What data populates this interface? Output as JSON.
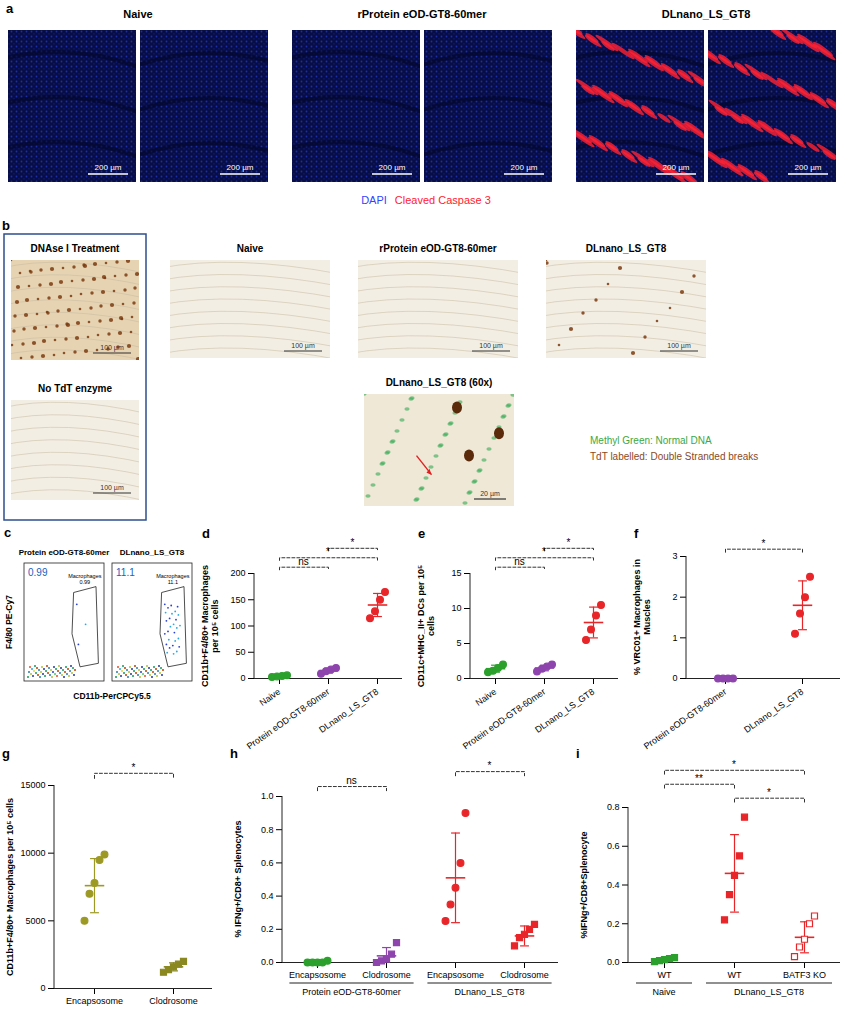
{
  "panel_a": {
    "panel_label": "a",
    "groups": [
      {
        "title": "Naive",
        "colors": [
          "#2f45ff"
        ]
      },
      {
        "title": "rProtein eOD-GT8-60mer",
        "colors": [
          "#2f45ff"
        ]
      },
      {
        "title": "DLnano_LS_GT8",
        "colors": [
          "#2f45ff",
          "#ff2233"
        ]
      }
    ],
    "scale_bar": "200 µm",
    "legend": [
      {
        "text": "DAPI",
        "color": "#2f45ff"
      },
      {
        "text": "Cleaved Caspase 3",
        "color": "#ff2233"
      }
    ]
  },
  "panel_b": {
    "panel_label": "b",
    "controls": [
      {
        "title": "DNAse I Treatment",
        "colors": [
          "#e6d3b2",
          "#7a3b10"
        ]
      },
      {
        "title": "No TdT enzyme",
        "colors": [
          "#f3eee4"
        ]
      }
    ],
    "images": [
      {
        "title": "Naive",
        "colors": [
          "#f3eee4"
        ]
      },
      {
        "title": "rProtein eOD-GT8-60mer",
        "colors": [
          "#f3eee4"
        ]
      },
      {
        "title": "DLnano_LS_GT8",
        "colors": [
          "#f3eee4",
          "#7a3b10"
        ]
      }
    ],
    "scale_bar": "100 µm",
    "inset": {
      "title": "DLnano_LS_GT8 (60x)",
      "scale_bar": "20 µm",
      "colors": [
        "#efe8d6",
        "#3fae5a",
        "#5a2a0a"
      ]
    },
    "legend": [
      {
        "text": "Methyl Green: Normal DNA",
        "color": "#3aa845"
      },
      {
        "text": "TdT labelled: Double Stranded breaks",
        "color": "#8b4a1c"
      }
    ]
  },
  "panel_c": {
    "panel_label": "c",
    "xlabel": "CD11b-PerCPCy5.5",
    "ylabel": "F4/80 PE-Cy7",
    "plots": [
      {
        "title": "Protein eOD-GT8-60mer",
        "gate": "Macrophages",
        "gate_value": 0.99
      },
      {
        "title": "DLnano_LS_GT8",
        "gate": "Macrophages",
        "gate_value": 11.1
      }
    ]
  },
  "chart_data": [
    {
      "panel_label": "d",
      "type": "scatter",
      "ylabel": "CD11b+F4/80+ Macrophages per 10⁵ cells",
      "ylim": [
        0,
        200
      ],
      "yticks": [
        0,
        50,
        100,
        150,
        200
      ],
      "series": [
        {
          "name": "Naive",
          "color": "#2ca02c",
          "marker": "circle",
          "values": [
            3,
            4,
            5,
            6
          ],
          "mean": 4.5,
          "sd": 1.3
        },
        {
          "name": "Protein eOD-GT8-60mer",
          "color": "#8e44ad",
          "marker": "circle",
          "values": [
            9,
            14,
            17,
            20
          ],
          "mean": 15,
          "sd": 4.7
        },
        {
          "name": "DLnano_LS_GT8",
          "color": "#e8262a",
          "marker": "circle",
          "values": [
            115,
            128,
            150,
            165
          ],
          "mean": 140,
          "sd": 22
        }
      ],
      "significance": [
        {
          "between": [
            0,
            1
          ],
          "label": "ns"
        },
        {
          "between": [
            0,
            2
          ],
          "label": "*"
        },
        {
          "between": [
            1,
            2
          ],
          "label": "*"
        }
      ]
    },
    {
      "panel_label": "e",
      "type": "scatter",
      "ylabel": "CD11c+MHC_II+ DCs per 10⁵ cells",
      "ylim": [
        0,
        15
      ],
      "yticks": [
        0,
        5,
        10,
        15
      ],
      "series": [
        {
          "name": "Naive",
          "color": "#2ca02c",
          "marker": "circle",
          "values": [
            0.9,
            1.1,
            1.5,
            2.0
          ],
          "mean": 1.4,
          "sd": 0.5
        },
        {
          "name": "Protein eOD-GT8-60mer",
          "color": "#8e44ad",
          "marker": "circle",
          "values": [
            1.0,
            1.4,
            1.7,
            2.0
          ],
          "mean": 1.5,
          "sd": 0.4
        },
        {
          "name": "DLnano_LS_GT8",
          "color": "#e8262a",
          "marker": "circle",
          "values": [
            5.5,
            7.0,
            9.0,
            10.5
          ],
          "mean": 8,
          "sd": 2.2
        }
      ],
      "significance": [
        {
          "between": [
            0,
            1
          ],
          "label": "ns"
        },
        {
          "between": [
            0,
            2
          ],
          "label": "*"
        },
        {
          "between": [
            1,
            2
          ],
          "label": "*"
        }
      ]
    },
    {
      "panel_label": "f",
      "type": "scatter",
      "ylabel": "% VRC01+ Macrophages in Muscles",
      "ylim": [
        0,
        3
      ],
      "yticks": [
        0,
        1,
        2,
        3
      ],
      "series": [
        {
          "name": "Protein eOD-GT8-60mer",
          "color": "#8e44ad",
          "marker": "circle",
          "values": [
            0,
            0,
            0,
            0
          ],
          "mean": 0,
          "sd": 0
        },
        {
          "name": "DLnano_LS_GT8",
          "color": "#e8262a",
          "marker": "circle",
          "values": [
            1.1,
            1.6,
            2.0,
            2.5
          ],
          "mean": 1.8,
          "sd": 0.6
        }
      ],
      "significance": [
        {
          "between": [
            0,
            1
          ],
          "label": "*"
        }
      ]
    },
    {
      "panel_label": "g",
      "type": "scatter",
      "ylabel": "CD11b+F4/80+ Macrophages per 10⁵ cells",
      "ylim": [
        0,
        15000
      ],
      "yticks": [
        0,
        5000,
        10000,
        15000
      ],
      "series": [
        {
          "name": "Encapsosome",
          "color": "#9c9a25",
          "marker": "circle",
          "values": [
            5000,
            7000,
            7800,
            9500,
            9900
          ],
          "mean": 7600,
          "sd": 2000
        },
        {
          "name": "Clodrosome",
          "color": "#8a8820",
          "marker": "square",
          "values": [
            1200,
            1400,
            1600,
            1800,
            2000
          ],
          "mean": 1600,
          "sd": 300
        }
      ],
      "significance": [
        {
          "between": [
            0,
            1
          ],
          "label": "*"
        }
      ]
    },
    {
      "panel_label": "h",
      "type": "scatter",
      "ylabel": "% IFNg+/CD8+ Splenocytes",
      "ylim": [
        0,
        1
      ],
      "yticks": [
        {
          "value": 0,
          "label": "0.0"
        },
        0.2,
        0.4,
        0.6,
        0.8,
        {
          "value": 1,
          "label": "1.0"
        }
      ],
      "series": [
        {
          "name": "Encapsosome",
          "group": "Protein eOD-GT8-60mer",
          "color": "#2ca02c",
          "marker": "circle",
          "values": [
            0,
            0,
            0,
            0,
            0.01
          ],
          "mean": 0.005,
          "sd": 0.005
        },
        {
          "name": "Clodrosome",
          "group": "Protein eOD-GT8-60mer",
          "color": "#8e44ad",
          "marker": "square",
          "values": [
            0,
            0.01,
            0.02,
            0.05,
            0.12
          ],
          "mean": 0.04,
          "sd": 0.05
        },
        {
          "name": "Encapsosome",
          "group": "DLnano_LS_GT8",
          "color": "#e8262a",
          "marker": "circle",
          "values": [
            0.25,
            0.35,
            0.45,
            0.6,
            0.9
          ],
          "mean": 0.51,
          "sd": 0.27
        },
        {
          "name": "Clodrosome",
          "group": "DLnano_LS_GT8",
          "color": "#e8262a",
          "marker": "square",
          "values": [
            0.1,
            0.15,
            0.17,
            0.2,
            0.23
          ],
          "mean": 0.16,
          "sd": 0.06
        }
      ],
      "significance": [
        {
          "between": [
            0,
            1
          ],
          "label": "ns"
        },
        {
          "between": [
            2,
            3
          ],
          "label": "*"
        }
      ]
    },
    {
      "panel_label": "i",
      "type": "scatter",
      "ylabel": "%IFNg+/CD8+Splenocyte",
      "ylim": [
        0,
        0.8
      ],
      "yticks": [
        {
          "value": 0,
          "label": "0.0"
        },
        0.2,
        0.4,
        0.6,
        0.8
      ],
      "series": [
        {
          "name": "WT",
          "group": "Naive",
          "color": "#2ca02c",
          "marker": "square",
          "values": [
            0.005,
            0.01,
            0.015,
            0.02,
            0.025
          ],
          "mean": 0.015,
          "sd": 0.008
        },
        {
          "name": "WT",
          "group": "DLnano_LS_GT8",
          "color": "#e8262a",
          "marker": "square",
          "values": [
            0.22,
            0.35,
            0.45,
            0.55,
            0.75
          ],
          "mean": 0.46,
          "sd": 0.2
        },
        {
          "name": "BATF3 KO",
          "group": "DLnano_LS_GT8",
          "color": "#e8262a",
          "marker": "square_open",
          "values": [
            0.03,
            0.08,
            0.12,
            0.2,
            0.24
          ],
          "mean": 0.13,
          "sd": 0.08
        }
      ],
      "significance": [
        {
          "between": [
            1,
            2
          ],
          "label": "*"
        },
        {
          "between": [
            0,
            1
          ],
          "label": "**"
        },
        {
          "between": [
            0,
            2
          ],
          "label": "*"
        }
      ]
    }
  ]
}
